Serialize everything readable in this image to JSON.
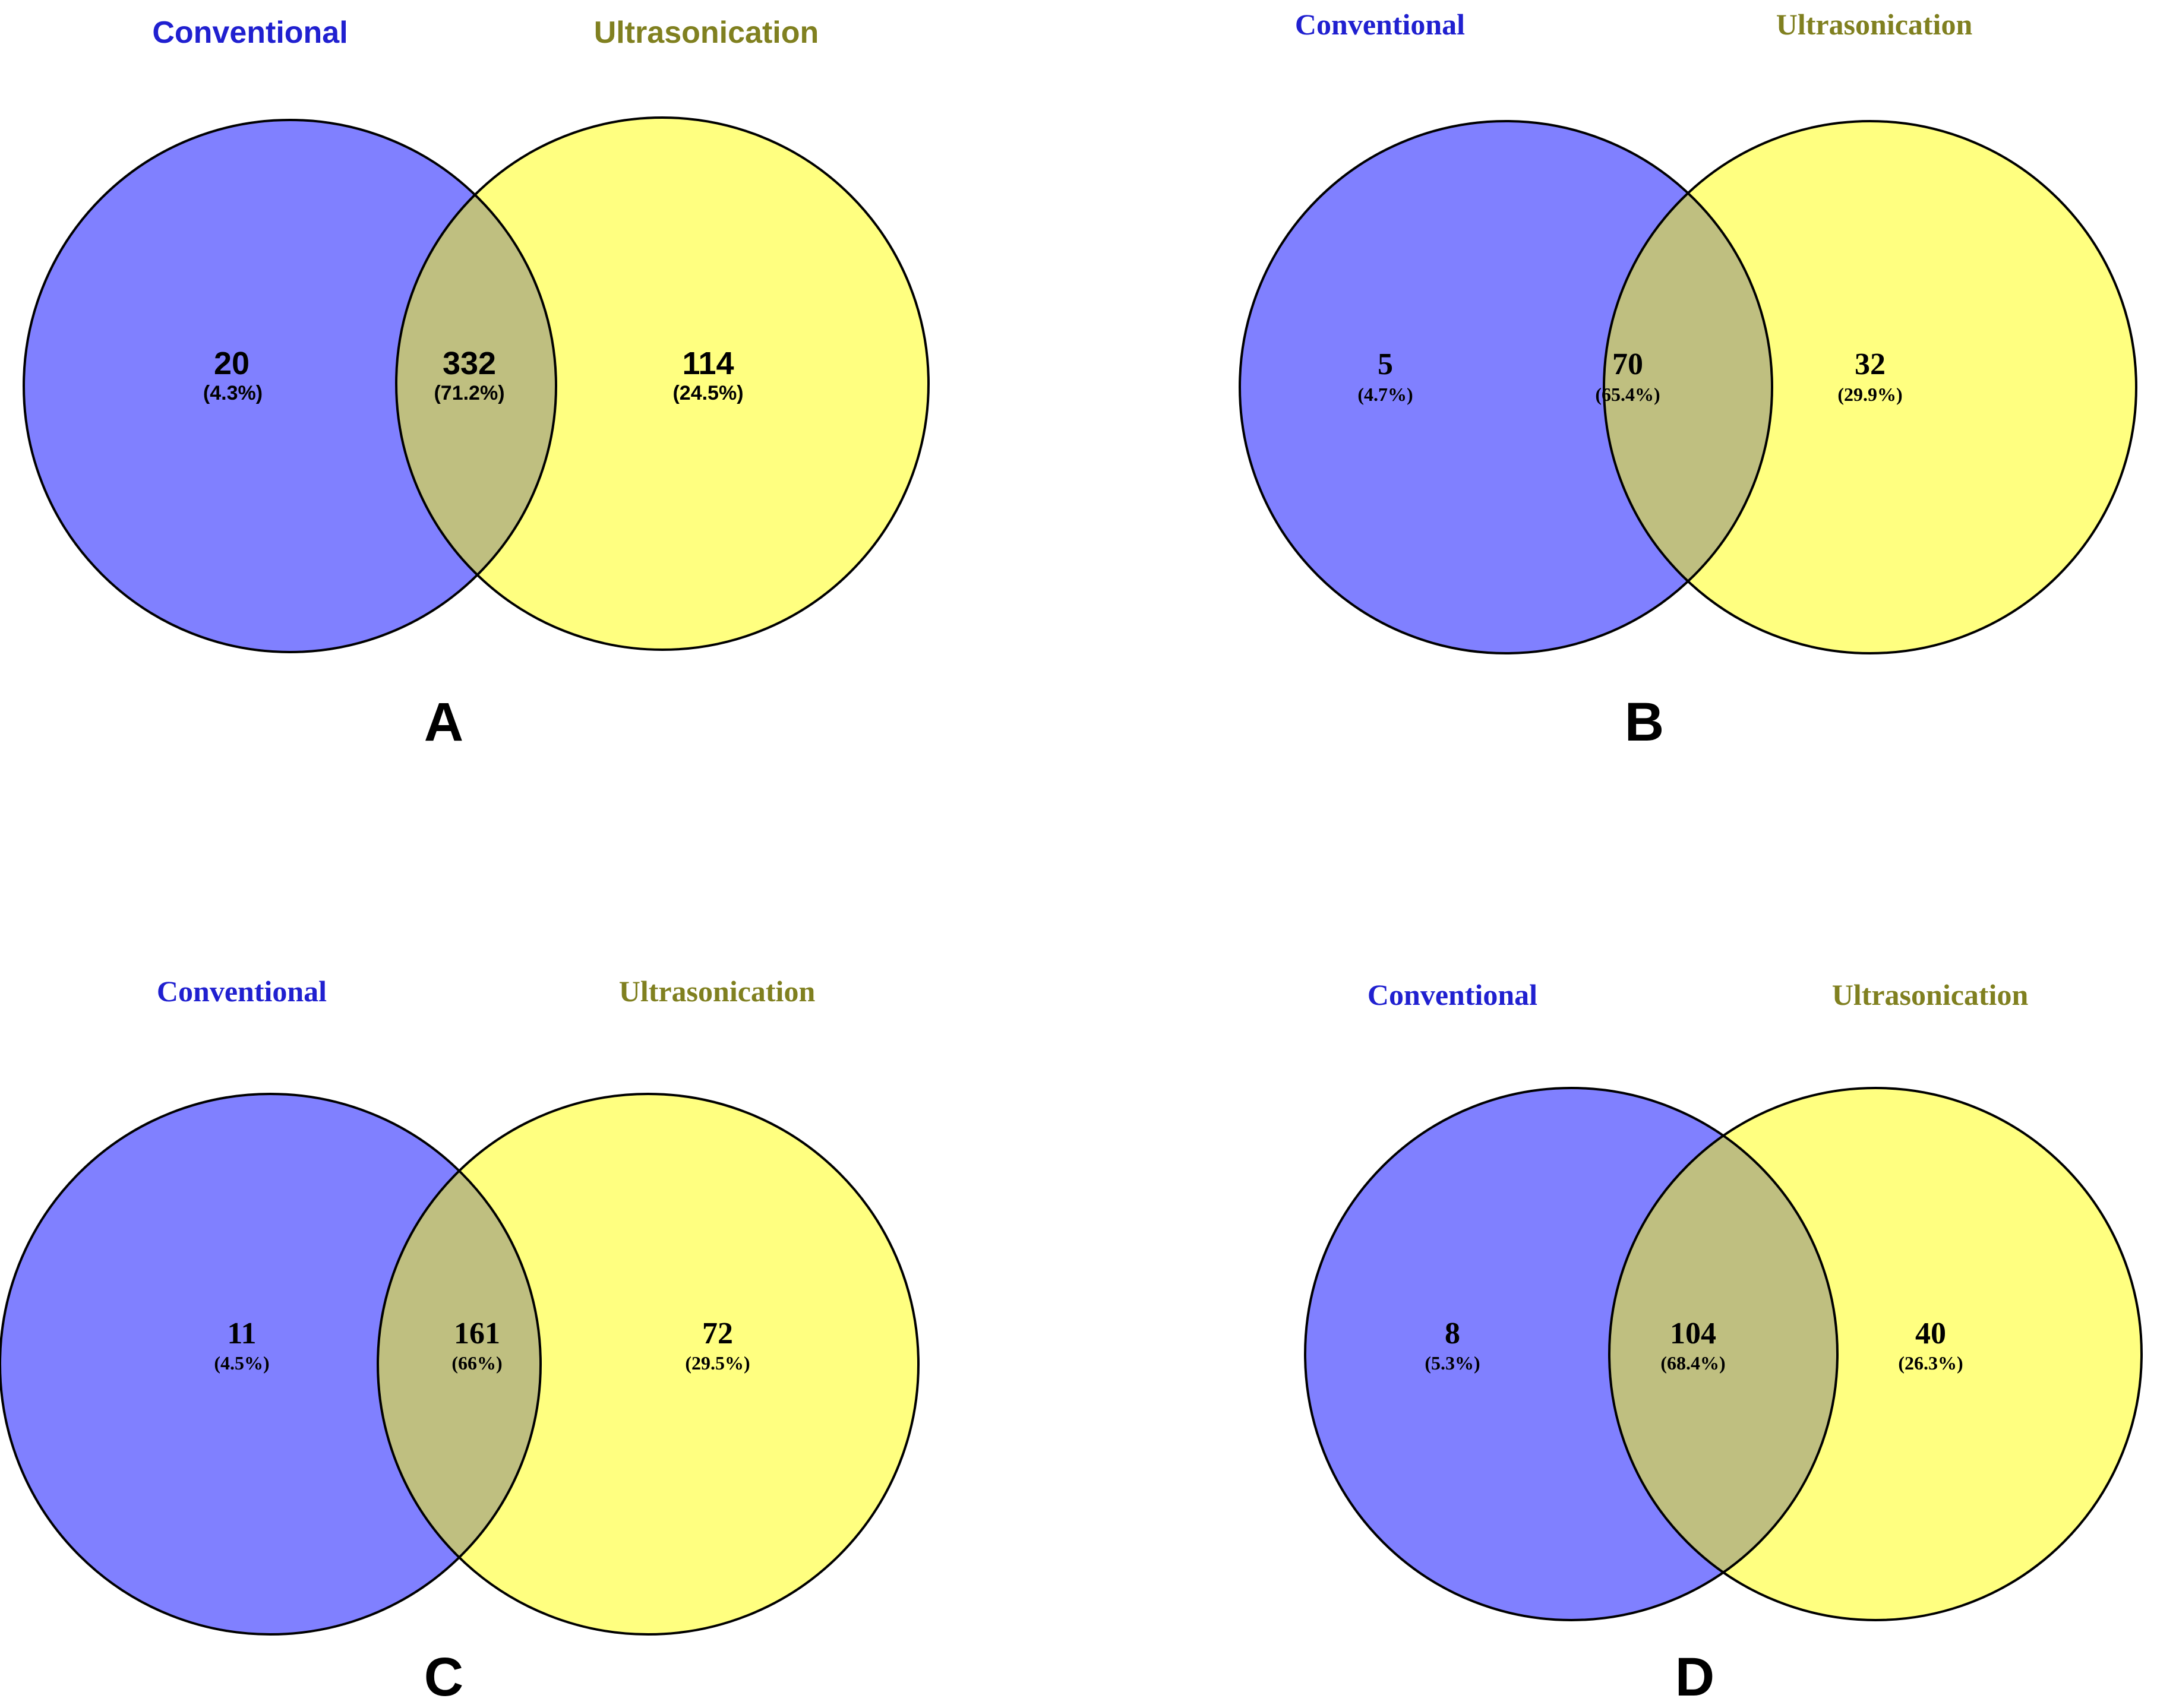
{
  "figure": {
    "colors": {
      "set1_fill": "#8080ff",
      "set2_fill": "#ffff80",
      "overlap_fill": "#bfbf80",
      "set1_label": "#2020d0",
      "set2_label": "#808020",
      "outline": "#000000"
    },
    "panels": [
      {
        "letter": "A",
        "set1_label": "Conventional",
        "set2_label": "Ultrasonication",
        "only_set1": {
          "count": "20",
          "percent": "(4.3%)"
        },
        "overlap": {
          "count": "332",
          "percent": "(71.2%)"
        },
        "only_set2": {
          "count": "114",
          "percent": "(24.5%)"
        }
      },
      {
        "letter": "B",
        "set1_label": "Conventional",
        "set2_label": "Ultrasonication",
        "only_set1": {
          "count": "5",
          "percent": "(4.7%)"
        },
        "overlap": {
          "count": "70",
          "percent": "(65.4%)"
        },
        "only_set2": {
          "count": "32",
          "percent": "(29.9%)"
        }
      },
      {
        "letter": "C",
        "set1_label": "Conventional",
        "set2_label": "Ultrasonication",
        "only_set1": {
          "count": "11",
          "percent": "(4.5%)"
        },
        "overlap": {
          "count": "161",
          "percent": "(66%)"
        },
        "only_set2": {
          "count": "72",
          "percent": "(29.5%)"
        }
      },
      {
        "letter": "D",
        "set1_label": "Conventional",
        "set2_label": "Ultrasonication",
        "only_set1": {
          "count": "8",
          "percent": "(5.3%)"
        },
        "overlap": {
          "count": "104",
          "percent": "(68.4%)"
        },
        "only_set2": {
          "count": "40",
          "percent": "(26.3%)"
        }
      }
    ]
  }
}
